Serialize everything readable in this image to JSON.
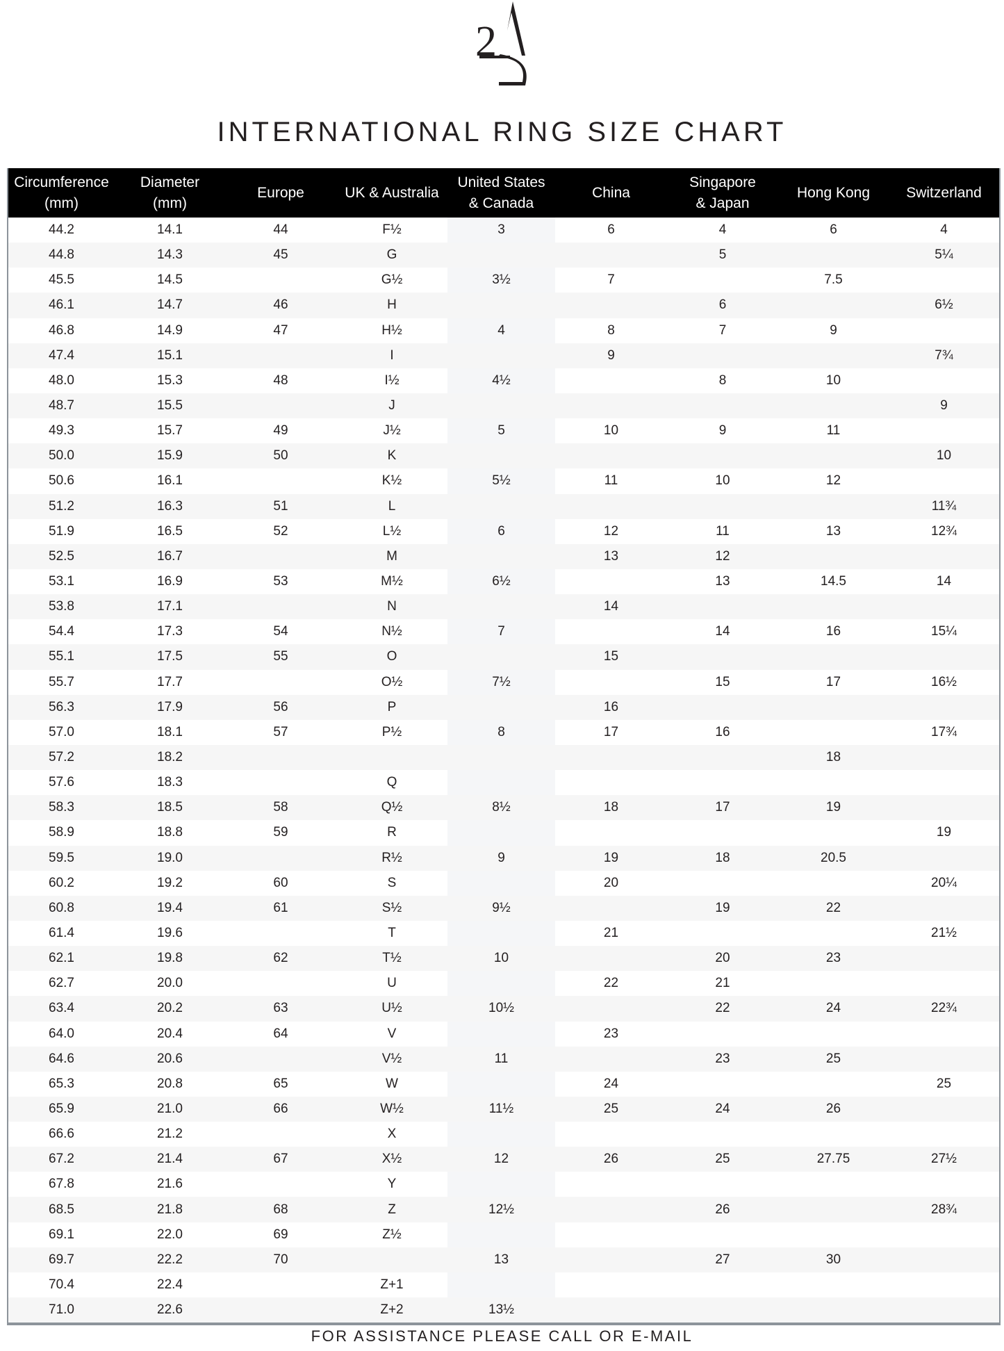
{
  "logo": {
    "text": "2AC"
  },
  "title": "INTERNATIONAL RING SIZE CHART",
  "table": {
    "headers": [
      [
        "Circumference",
        "(mm)"
      ],
      [
        "Diameter",
        "(mm)"
      ],
      [
        "Europe",
        ""
      ],
      [
        "UK & Australia",
        ""
      ],
      [
        "United States",
        "& Canada"
      ],
      [
        "China",
        ""
      ],
      [
        "Singapore",
        "& Japan"
      ],
      [
        "Hong Kong",
        ""
      ],
      [
        "Switzerland",
        ""
      ]
    ],
    "rows": [
      [
        "44.2",
        "14.1",
        "44",
        "F½",
        "3",
        "6",
        "4",
        "6",
        "4"
      ],
      [
        "44.8",
        "14.3",
        "45",
        "G",
        "",
        "",
        "5",
        "",
        "5¼"
      ],
      [
        "45.5",
        "14.5",
        "",
        "G½",
        "3½",
        "7",
        "",
        "7.5",
        ""
      ],
      [
        "46.1",
        "14.7",
        "46",
        "H",
        "",
        "",
        "6",
        "",
        "6½"
      ],
      [
        "46.8",
        "14.9",
        "47",
        "H½",
        "4",
        "8",
        "7",
        "9",
        ""
      ],
      [
        "47.4",
        "15.1",
        "",
        "I",
        "",
        "9",
        "",
        "",
        "7¾"
      ],
      [
        "48.0",
        "15.3",
        "48",
        "I½",
        "4½",
        "",
        "8",
        "10",
        ""
      ],
      [
        "48.7",
        "15.5",
        "",
        "J",
        "",
        "",
        "",
        "",
        "9"
      ],
      [
        "49.3",
        "15.7",
        "49",
        "J½",
        "5",
        "10",
        "9",
        "11",
        ""
      ],
      [
        "50.0",
        "15.9",
        "50",
        "K",
        "",
        "",
        "",
        "",
        "10"
      ],
      [
        "50.6",
        "16.1",
        "",
        "K½",
        "5½",
        "11",
        "10",
        "12",
        ""
      ],
      [
        "51.2",
        "16.3",
        "51",
        "L",
        "",
        "",
        "",
        "",
        "11¾"
      ],
      [
        "51.9",
        "16.5",
        "52",
        "L½",
        "6",
        "12",
        "11",
        "13",
        "12¾"
      ],
      [
        "52.5",
        "16.7",
        "",
        "M",
        "",
        "13",
        "12",
        "",
        ""
      ],
      [
        "53.1",
        "16.9",
        "53",
        "M½",
        "6½",
        "",
        "13",
        "14.5",
        "14"
      ],
      [
        "53.8",
        "17.1",
        "",
        "N",
        "",
        "14",
        "",
        "",
        ""
      ],
      [
        "54.4",
        "17.3",
        "54",
        "N½",
        "7",
        "",
        "14",
        "16",
        "15¼"
      ],
      [
        "55.1",
        "17.5",
        "55",
        "O",
        "",
        "15",
        "",
        "",
        ""
      ],
      [
        "55.7",
        "17.7",
        "",
        "O½",
        "7½",
        "",
        "15",
        "17",
        "16½"
      ],
      [
        "56.3",
        "17.9",
        "56",
        "P",
        "",
        "16",
        "",
        "",
        ""
      ],
      [
        "57.0",
        "18.1",
        "57",
        "P½",
        "8",
        "17",
        "16",
        "",
        "17¾"
      ],
      [
        "57.2",
        "18.2",
        "",
        "",
        "",
        "",
        "",
        "18",
        ""
      ],
      [
        "57.6",
        "18.3",
        "",
        "Q",
        "",
        "",
        "",
        "",
        ""
      ],
      [
        "58.3",
        "18.5",
        "58",
        "Q½",
        "8½",
        "18",
        "17",
        "19",
        ""
      ],
      [
        "58.9",
        "18.8",
        "59",
        "R",
        "",
        "",
        "",
        "",
        "19"
      ],
      [
        "59.5",
        "19.0",
        "",
        "R½",
        "9",
        "19",
        "18",
        "20.5",
        ""
      ],
      [
        "60.2",
        "19.2",
        "60",
        "S",
        "",
        "20",
        "",
        "",
        "20¼"
      ],
      [
        "60.8",
        "19.4",
        "61",
        "S½",
        "9½",
        "",
        "19",
        "22",
        ""
      ],
      [
        "61.4",
        "19.6",
        "",
        "T",
        "",
        "21",
        "",
        "",
        "21½"
      ],
      [
        "62.1",
        "19.8",
        "62",
        "T½",
        "10",
        "",
        "20",
        "23",
        ""
      ],
      [
        "62.7",
        "20.0",
        "",
        "U",
        "",
        "22",
        "21",
        "",
        ""
      ],
      [
        "63.4",
        "20.2",
        "63",
        "U½",
        "10½",
        "",
        "22",
        "24",
        "22¾"
      ],
      [
        "64.0",
        "20.4",
        "64",
        "V",
        "",
        "23",
        "",
        "",
        ""
      ],
      [
        "64.6",
        "20.6",
        "",
        "V½",
        "11",
        "",
        "23",
        "25",
        ""
      ],
      [
        "65.3",
        "20.8",
        "65",
        "W",
        "",
        "24",
        "",
        "",
        "25"
      ],
      [
        "65.9",
        "21.0",
        "66",
        "W½",
        "11½",
        "25",
        "24",
        "26",
        ""
      ],
      [
        "66.6",
        "21.2",
        "",
        "X",
        "",
        "",
        "",
        "",
        ""
      ],
      [
        "67.2",
        "21.4",
        "67",
        "X½",
        "12",
        "26",
        "25",
        "27.75",
        "27½"
      ],
      [
        "67.8",
        "21.6",
        "",
        "Y",
        "",
        "",
        "",
        "",
        ""
      ],
      [
        "68.5",
        "21.8",
        "68",
        "Z",
        "12½",
        "",
        "26",
        "",
        "28¾"
      ],
      [
        "69.1",
        "22.0",
        "69",
        "Z½",
        "",
        "",
        "",
        "",
        ""
      ],
      [
        "69.7",
        "22.2",
        "70",
        "",
        "13",
        "",
        "27",
        "30",
        ""
      ],
      [
        "70.4",
        "22.4",
        "",
        "Z+1",
        "",
        "",
        "",
        "",
        ""
      ],
      [
        "71.0",
        "22.6",
        "",
        "Z+2",
        "13½",
        "",
        "",
        "",
        ""
      ]
    ]
  },
  "footer": "FOR ASSISTANCE PLEASE CALL OR E-MAIL",
  "colors": {
    "header_bg": "#000000",
    "header_text": "#ffffff",
    "stripe": "#f6f6f6",
    "border": "#8d949b"
  }
}
